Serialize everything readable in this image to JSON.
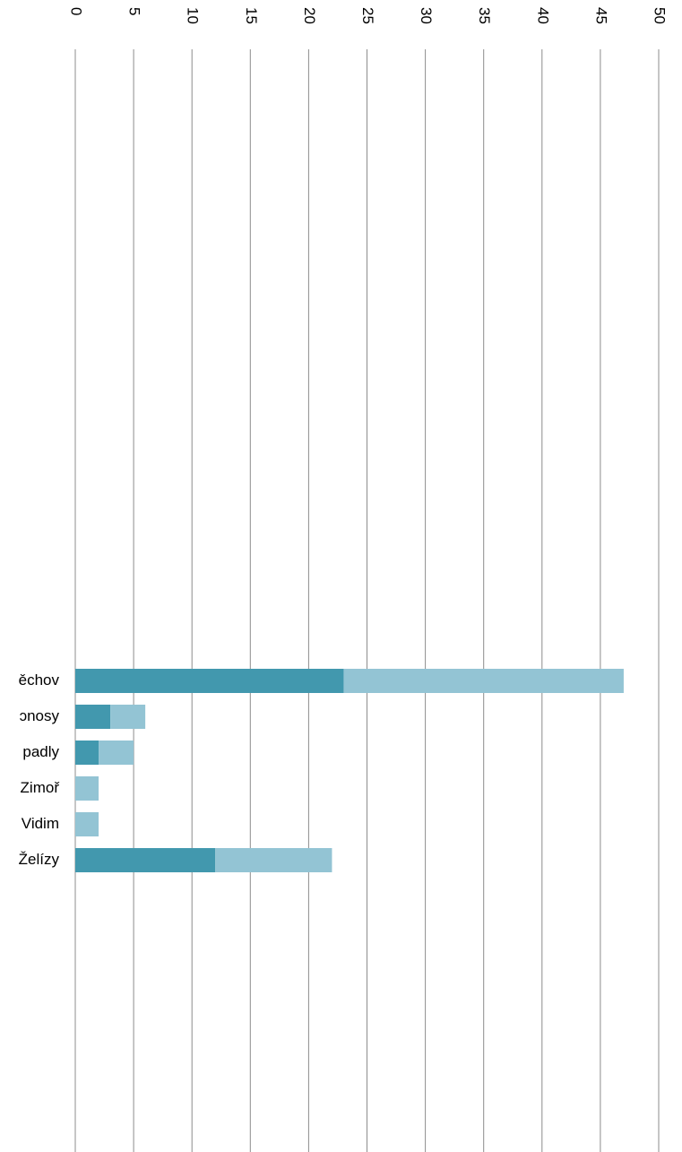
{
  "chart_data": {
    "type": "bar",
    "orientation": "horizontal-stacked",
    "xlim": [
      0,
      50
    ],
    "x_ticks": [
      "0",
      "5",
      "10",
      "15",
      "20",
      "25",
      "30",
      "35",
      "40",
      "45",
      "50"
    ],
    "tick_label_rotation": "90",
    "grid": "vertical",
    "categories": [
      "ěchov",
      "ɔnosy",
      "padly",
      "Zimoř",
      "Vidim",
      "Želízy"
    ],
    "series": [
      {
        "values": [
          23,
          3,
          2,
          0,
          0,
          12
        ],
        "color": "#4298ae"
      },
      {
        "values": [
          24,
          3,
          3,
          2,
          2,
          10
        ],
        "color": "#93c4d4"
      }
    ]
  }
}
